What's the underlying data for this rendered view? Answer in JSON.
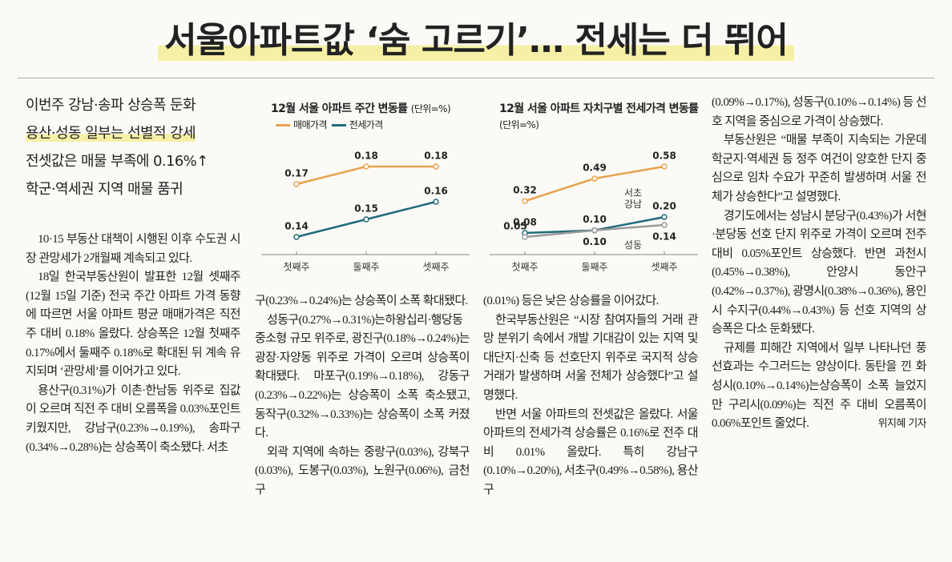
{
  "headline": "서울아파트값 ‘숨 고르기’… 전세는 더 뛰어",
  "subheadlines": [
    "이번주 강남·송파 상승폭 둔화",
    "용산·성동 일부는 선별적 강세",
    "전셋값은 매물 부족에 0.16%↑",
    "학군·역세권 지역 매물 품귀"
  ],
  "chart_data": [
    {
      "type": "line",
      "title": "12월 서울 아파트 주간 변동률",
      "subtitle": "(단위=%)",
      "legend": true,
      "categories": [
        "첫째주",
        "둘째주",
        "셋째주"
      ],
      "series": [
        {
          "name": "매매가격",
          "color": "#e9a24c",
          "values": [
            0.17,
            0.18,
            0.18
          ]
        },
        {
          "name": "전세가격",
          "color": "#1f6b7c",
          "values": [
            0.14,
            0.15,
            0.16
          ]
        }
      ]
    },
    {
      "type": "line",
      "title": "12월 서울 아파트 자치구별 전세가격 변동률",
      "subtitle": "(단위=%)",
      "legend": false,
      "categories": [
        "첫째주",
        "둘째주",
        "셋째주"
      ],
      "series": [
        {
          "name": "서초",
          "color": "#e9a24c",
          "values": [
            0.32,
            0.49,
            0.58
          ],
          "value_labels": [
            "0.32",
            "0.49",
            "0.58"
          ]
        },
        {
          "name": "강남",
          "color": "#1f6b7c",
          "values": [
            0.08,
            0.1,
            0.2
          ],
          "value_labels": [
            "0.08",
            "0.10",
            "0.20"
          ]
        },
        {
          "name": "성동",
          "color": "#9a9a9a",
          "values": [
            0.05,
            0.1,
            0.14
          ],
          "value_labels": [
            "0.05",
            "0.10",
            "0.14"
          ]
        }
      ]
    }
  ],
  "columns": [
    [
      "10·15 부동산 대책이 시행된 이후 수도권 시장 관망세가 2개월째 계속되고 있다.",
      "18일 한국부동산원이 발표한 12월 셋째주(12월 15일 기준) 전국 주간 아파트 가격 동향에 따르면 서울 아파트 평균 매매가격은 직전 주 대비 0.18% 올랐다. 상승폭은 12월 첫째주 0.17%에서 둘째주 0.18%로 확대된 뒤 계속 유지되며 ‘관망세’를 이어가고 있다.",
      "용산구(0.31%)가 이촌·한남동 위주로 집값이 오르며 직전 주 대비 오름폭을 0.03%포인트 키웠지만, 강남구(0.23%→0.19%), 송파구(0.34%→0.28%)는 상승폭이 축소됐다. 서초"
    ],
    [
      "구(0.23%→0.24%)는 상승폭이 소폭 확대됐다.",
      "성동구(0.27%→0.31%)는하왕십리·행당동 중소형 규모 위주로, 광진구(0.18%→0.24%)는 광장·자양동 위주로 가격이 오르며 상승폭이 확대됐다. 마포구(0.19%→0.18%), 강동구(0.23%→0.22%)는 상승폭이 소폭 축소됐고, 동작구(0.32%→0.33%)는 상승폭이 소폭 커졌다.",
      "외곽 지역에 속하는 중랑구(0.03%), 강북구(0.03%), 도봉구(0.03%), 노원구(0.06%), 금천구"
    ],
    [
      "(0.01%) 등은 낮은 상승률을 이어갔다.",
      "한국부동산원은 “시장 참여자들의 거래 관망 분위기 속에서 개발 기대감이 있는 지역 및 대단지·신축 등 선호단지 위주로 국지적 상승 거래가 발생하며 서울 전체가 상승했다”고 설명했다.",
      "반면 서울 아파트의 전셋값은 올랐다. 서울 아파트의 전세가격 상승률은 0.16%로 전주 대비 0.01% 올랐다. 특히 강남구(0.10%→0.20%), 서초구(0.49%→0.58%), 용산구"
    ],
    [
      "(0.09%→0.17%), 성동구(0.10%→0.14%) 등 선호 지역을 중심으로 가격이 상승했다.",
      "부동산원은 “매물 부족이 지속되는 가운데 학군지·역세권 등 정주 여건이 양호한 단지 중심으로 임차 수요가 꾸준히 발생하며 서울 전체가 상승한다”고 설명했다.",
      "경기도에서는 성남시 분당구(0.43%)가 서현·분당동 선호 단지 위주로 가격이 오르며 전주 대비 0.05%포인트 상승했다. 반면 과천시(0.45%→0.38%), 안양시 동안구(0.42%→0.37%), 광명시(0.38%→0.36%), 용인시 수지구(0.44%→0.43%) 등 선호 지역의 상승폭은 다소 둔화됐다.",
      "규제를 피해간 지역에서 일부 나타나던 풍선효과는 수그러드는 양상이다. 동탄을 낀 화성시(0.10%→0.14%)는상승폭이 소폭 늘었지만 구리시(0.09%)는 직전 주 대비 오름폭이 0.06%포인트 줄었다."
    ]
  ],
  "byline": "위지혜 기자"
}
